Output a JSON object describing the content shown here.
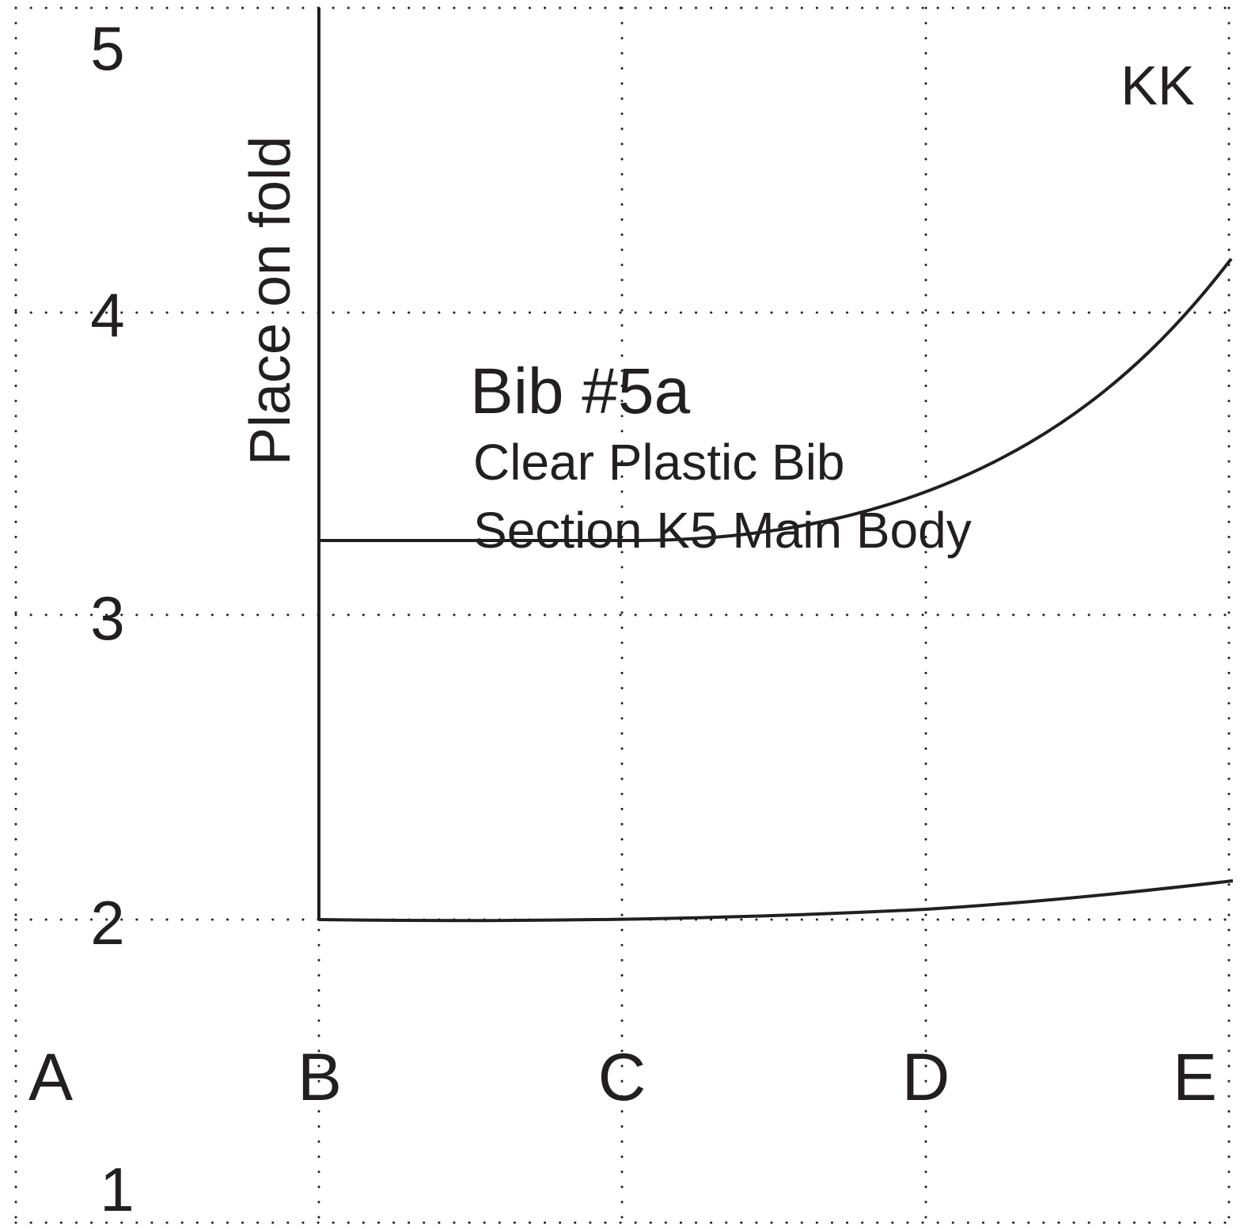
{
  "pattern": {
    "title": "Bib #5a",
    "subtitle": "Clear Plastic Bib",
    "section": "Section K5 Main Body",
    "fold_label": "Place on fold",
    "designer_mark": "KK"
  },
  "grid": {
    "column_labels": [
      "A",
      "B",
      "C",
      "D",
      "E"
    ],
    "row_labels": [
      "5",
      "4",
      "3",
      "2",
      "1"
    ]
  },
  "colors": {
    "ink": "#231f20",
    "paper": "#ffffff"
  }
}
